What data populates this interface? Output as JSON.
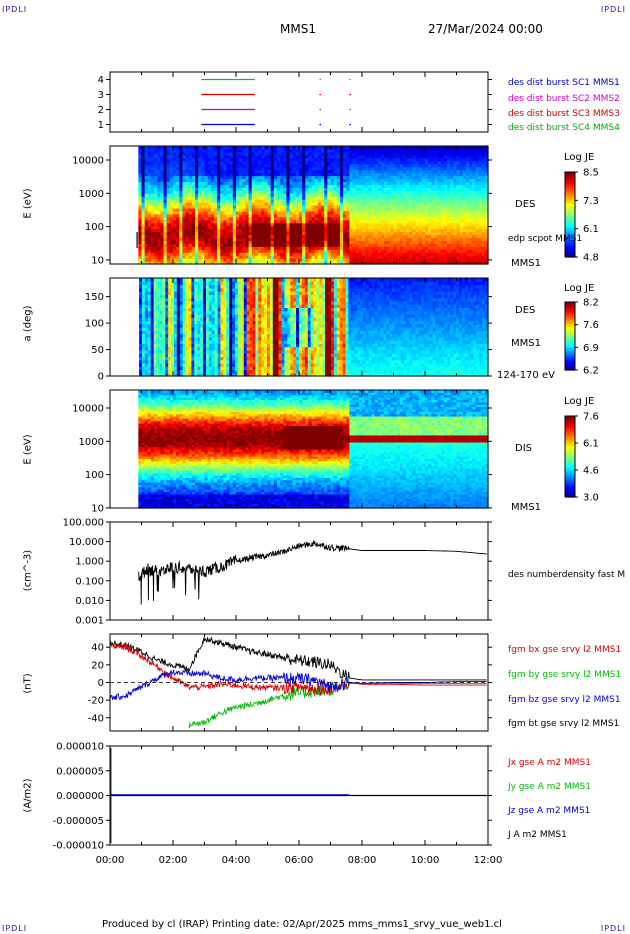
{
  "corner_label": "IPDLI",
  "header": {
    "spacecraft": "MMS1",
    "datetime": "27/Mar/2024 00:00"
  },
  "footer": {
    "text": "Produced by cl (IRAP)   Printing date: 02/Apr/2025   mms_mms1_srvy_vue_web1.cl"
  },
  "panels": {
    "burst": {
      "y_ticks": [
        "4",
        "3",
        "2",
        "1"
      ],
      "legend": [
        {
          "text": "des dist burst SC1 MMS1",
          "color": "#0000cc"
        },
        {
          "text": "des dist burst SC2 MMS2",
          "color": "#cc00cc"
        },
        {
          "text": "des dist burst SC3 MMS3",
          "color": "#cc0000"
        },
        {
          "text": "des dist burst SC4 MMS4",
          "color": "#00aa00"
        }
      ]
    },
    "des_energy": {
      "ylabel": "E (eV)",
      "y_ticks": [
        "10000",
        "1000",
        "100",
        "10"
      ],
      "species": "DES",
      "overlay": "edp scpot MMS1",
      "sc": "MMS1",
      "cbar_title": "Log JE",
      "cbar_ticks": [
        "8.5",
        "7.3",
        "6.1",
        "4.8"
      ]
    },
    "des_pitch": {
      "ylabel": "a (deg)",
      "y_ticks": [
        "150",
        "100",
        "50",
        "0"
      ],
      "species": "DES",
      "sc": "MMS1",
      "energy_range": "124-170 eV",
      "cbar_title": "Log JE",
      "cbar_ticks": [
        "8.2",
        "7.6",
        "6.9",
        "6.2"
      ]
    },
    "dis_energy": {
      "ylabel": "E (eV)",
      "y_ticks": [
        "10000",
        "1000",
        "100",
        "10"
      ],
      "species": "DIS",
      "sc": "MMS1",
      "cbar_title": "Log JE",
      "cbar_ticks": [
        "7.6",
        "6.1",
        "4.6",
        "3.0"
      ]
    },
    "density": {
      "ylabel": "(cm^-3)",
      "y_ticks": [
        "100.000",
        "10.000",
        "1.000",
        "0.100",
        "0.010",
        "0.001"
      ],
      "legend": "des numberdensity fast M"
    },
    "bfield": {
      "ylabel": "(nT)",
      "y_ticks": [
        "40",
        "20",
        "0",
        "-20",
        "-40"
      ],
      "legend": [
        {
          "text": "fgm bx gse srvy l2 MMS1",
          "color": "#dd0000"
        },
        {
          "text": "fgm by gse srvy l2 MMS1",
          "color": "#00bb00"
        },
        {
          "text": "fgm bz gse srvy l2 MMS1",
          "color": "#0000dd"
        },
        {
          "text": "fgm bt gse srvy l2 MMS1",
          "color": "#000000"
        }
      ]
    },
    "current": {
      "ylabel": "(A/m2)",
      "y_ticks": [
        "0.000010",
        "0.000005",
        "0.000000",
        "-0.000005",
        "-0.000010"
      ],
      "legend": [
        {
          "text": "Jx gse A m2 MMS1",
          "color": "#dd0000"
        },
        {
          "text": "Jy gse A m2 MMS1",
          "color": "#00bb00"
        },
        {
          "text": "Jz gse A m2 MMS1",
          "color": "#0000dd"
        },
        {
          "text": "J A m2 MMS1",
          "color": "#000000"
        }
      ]
    }
  },
  "x_ticks": [
    "00:00",
    "02:00",
    "04:00",
    "06:00",
    "08:00",
    "10:00",
    "12:00"
  ],
  "chart_data": [
    {
      "type": "line",
      "panel": "burst availability",
      "x_hours": [],
      "series": [
        {
          "name": "des dist burst SC1 MMS1",
          "level": 1,
          "intervals_h": [
            [
              2.9,
              4.6
            ],
            [
              6.65,
              6.7
            ],
            [
              7.6,
              7.65
            ]
          ]
        },
        {
          "name": "des dist burst SC2 MMS2",
          "level": 2,
          "intervals_h": [
            [
              2.9,
              4.6
            ],
            [
              6.65,
              6.7
            ],
            [
              7.6,
              7.65
            ]
          ]
        },
        {
          "name": "des dist burst SC3 MMS3",
          "level": 3,
          "intervals_h": [
            [
              2.9,
              4.6
            ],
            [
              6.65,
              6.7
            ],
            [
              7.6,
              7.65
            ]
          ]
        },
        {
          "name": "des dist burst SC4 MMS4",
          "level": 4,
          "intervals_h": [
            [
              2.9,
              4.6
            ],
            [
              6.65,
              6.7
            ],
            [
              7.6,
              7.65
            ]
          ]
        }
      ],
      "ylim": [
        0.5,
        4.5
      ]
    },
    {
      "type": "heatmap",
      "panel": "DES energy spectrogram",
      "x_range_h": [
        0,
        12
      ],
      "y_range": [
        10,
        30000
      ],
      "y_scale": "log",
      "colorbar": [
        4.8,
        8.5
      ],
      "data_start_h": 0.9,
      "boundary_h": 7.6
    },
    {
      "type": "heatmap",
      "panel": "DES pitch angle 124-170 eV",
      "x_range_h": [
        0,
        12
      ],
      "y_range": [
        0,
        180
      ],
      "colorbar": [
        6.2,
        8.2
      ],
      "data_start_h": 0.9,
      "boundary_h": 7.6
    },
    {
      "type": "heatmap",
      "panel": "DIS energy spectrogram",
      "x_range_h": [
        0,
        12
      ],
      "y_range": [
        10,
        30000
      ],
      "y_scale": "log",
      "colorbar": [
        3.0,
        7.6
      ],
      "data_start_h": 0.9,
      "boundary_h": 7.6,
      "post_boundary_band_eV": 1500
    },
    {
      "type": "line",
      "panel": "des numberdensity fast",
      "y_scale": "log",
      "ylim": [
        0.001,
        100
      ],
      "x": [
        0.9,
        1.2,
        1.5,
        2.0,
        2.5,
        3.0,
        3.5,
        4.0,
        4.5,
        5.0,
        5.5,
        6.0,
        6.5,
        7.0,
        7.5,
        8.0,
        9.0,
        10.0,
        11.0,
        12.0
      ],
      "y": [
        0.15,
        0.4,
        0.3,
        0.5,
        0.4,
        0.3,
        0.5,
        1.0,
        1.5,
        2.0,
        3.0,
        6.0,
        8.0,
        5.0,
        4.5,
        3.5,
        3.5,
        3.5,
        3.2,
        2.3
      ]
    },
    {
      "type": "line",
      "panel": "fgm gse",
      "ylim": [
        -50,
        50
      ],
      "x": [
        0,
        0.5,
        1.0,
        1.5,
        2.0,
        2.5,
        3.0,
        3.5,
        4.0,
        4.5,
        5.0,
        5.5,
        6.0,
        6.5,
        7.0,
        7.6,
        8.0,
        9.0,
        10.0,
        11.0,
        12.0
      ],
      "series": [
        {
          "name": "fgm bx gse srvy l2 MMS1",
          "values": [
            42,
            40,
            30,
            18,
            5,
            -5,
            -5,
            -2,
            -3,
            -5,
            -6,
            -6,
            -5,
            -7,
            -8,
            0,
            -2,
            -2,
            -3,
            -3,
            -3
          ]
        },
        {
          "name": "fgm by gse srvy l2 MMS1",
          "values": [
            null,
            null,
            null,
            null,
            null,
            -48,
            -45,
            -35,
            -28,
            -25,
            -20,
            -15,
            -12,
            -10,
            -8,
            -1,
            -1,
            -1,
            -1,
            -1,
            -1
          ]
        },
        {
          "name": "fgm bz gse srvy l2 MMS1",
          "values": [
            -18,
            -15,
            -5,
            5,
            12,
            10,
            10,
            5,
            3,
            5,
            5,
            5,
            4,
            2,
            -5,
            0,
            -1,
            0,
            0,
            1,
            1
          ]
        },
        {
          "name": "fgm bt gse srvy l2 MMS1",
          "values": [
            45,
            42,
            35,
            25,
            20,
            15,
            50,
            45,
            40,
            35,
            32,
            28,
            25,
            23,
            20,
            5,
            3,
            3,
            3,
            3,
            3
          ]
        }
      ]
    },
    {
      "type": "line",
      "panel": "current density",
      "ylim": [
        -1e-05,
        1e-05
      ],
      "x": [
        0,
        2,
        4,
        6,
        7.6,
        8,
        10,
        12
      ],
      "series": [
        {
          "name": "J A m2 MMS1",
          "values": [
            0,
            0,
            0,
            0,
            0,
            0,
            0,
            0
          ]
        }
      ]
    }
  ]
}
